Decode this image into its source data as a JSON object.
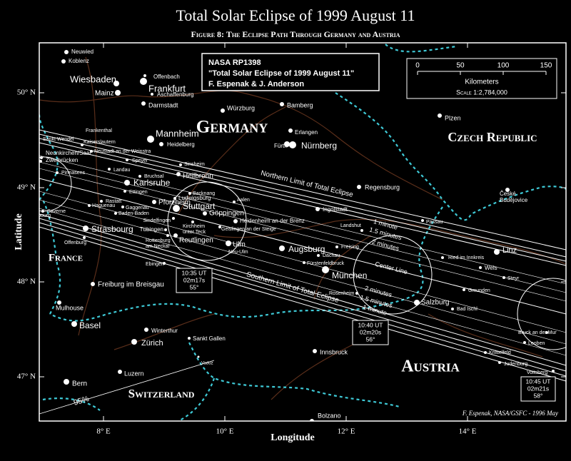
{
  "header": {
    "title": "Total Solar Eclipse of 1999 August 11",
    "subtitle": "Figure 8: The Eclipse Path Through Germany and Austria"
  },
  "credit_box": {
    "lines": [
      "NASA RP1398",
      "\"Total Solar Eclipse of 1999 August 11\"",
      "F. Espenak & J. Anderson"
    ]
  },
  "scale": {
    "title": "Kilometers",
    "ticks": [
      0,
      50,
      100,
      150
    ],
    "scale": "Scale 1:2,784,000"
  },
  "axes": {
    "y_label": "Latitude",
    "x_label": "Longitude",
    "y_ticks": [
      "50° N",
      "49° N",
      "48° N",
      "47° N"
    ],
    "x_ticks": [
      "8° E",
      "10° E",
      "12° E",
      "14° E"
    ]
  },
  "countries": [
    "Germany",
    "Czech Republic",
    "France",
    "Austria",
    "Switzerland"
  ],
  "path_labels": {
    "northern": "Northern Limit of Total Eclipse",
    "southern": "Southern Limit of Total Eclipse",
    "center": "Center Line",
    "percent": "95%"
  },
  "durations": [
    "1 minute",
    "1.5 minutes",
    "2 minutes",
    "2 minutes",
    "1.5 minutes",
    "1 minute"
  ],
  "time_boxes": [
    {
      "lines": [
        "10:35 UT",
        "02m17s",
        "55°"
      ]
    },
    {
      "lines": [
        "10:40 UT",
        "02m20s",
        "56°"
      ]
    },
    {
      "lines": [
        "10:45 UT",
        "02m21s",
        "58°"
      ]
    }
  ],
  "cities": [
    {
      "label": "Neuwied"
    },
    {
      "label": "Koblenz"
    },
    {
      "label": "Wiesbaden"
    },
    {
      "label": "Mainz"
    },
    {
      "label": "Offenbach"
    },
    {
      "label": "Frankfurt"
    },
    {
      "label": "Aschaffenburg"
    },
    {
      "label": "Darmstadt"
    },
    {
      "label": "Würzburg"
    },
    {
      "label": "Bamberg"
    },
    {
      "label": "Erlangen"
    },
    {
      "label": "Fürth"
    },
    {
      "label": "Nürnberg"
    },
    {
      "label": "Plzen"
    },
    {
      "label": "Mannheim"
    },
    {
      "label": "Frankenthal"
    },
    {
      "label": "Heidelberg"
    },
    {
      "label": "Sankt Wendel"
    },
    {
      "label": "Kaiserslautern"
    },
    {
      "label": "Neunkirchen/Saar"
    },
    {
      "label": "Neustadt an der Weinstra"
    },
    {
      "label": "Zweibrücken"
    },
    {
      "label": "Speyer"
    },
    {
      "label": "Sinsheim"
    },
    {
      "label": "Landau"
    },
    {
      "label": "Pirmasens"
    },
    {
      "label": "Bruchsal"
    },
    {
      "label": "Heilbronn"
    },
    {
      "label": "Karlsruhe"
    },
    {
      "label": "Ettingen"
    },
    {
      "label": "Backnang"
    },
    {
      "label": "Rastatt"
    },
    {
      "label": "Ludwigsburg"
    },
    {
      "label": "Aalen"
    },
    {
      "label": "Haguenau"
    },
    {
      "label": "Pforzheim"
    },
    {
      "label": "Gaggenau"
    },
    {
      "label": "Stuttgart"
    },
    {
      "label": "Göppingen"
    },
    {
      "label": "Baden-Baden"
    },
    {
      "label": "Sindelfingen"
    },
    {
      "label": "Saverne"
    },
    {
      "label": "Sarrebourg"
    },
    {
      "label": "Heidenheim an der Brenz"
    },
    {
      "label": "Strasbourg"
    },
    {
      "label": "Tübingen"
    },
    {
      "label": [
        "Kirchheim",
        "unter Teck"
      ]
    },
    {
      "label": "Geislingen an der Steige"
    },
    {
      "label": "Offenburg"
    },
    {
      "label": "Ingolstadt"
    },
    {
      "label": "Regensburg"
    },
    {
      "label": "Landshut"
    },
    {
      "label": "Passau"
    },
    {
      "label": [
        "Rottenburg",
        "am Neckar"
      ]
    },
    {
      "label": "Reutlingen"
    },
    {
      "label": "Ulm"
    },
    {
      "label": "Neu-Ulm"
    },
    {
      "label": "Augsburg"
    },
    {
      "label": "Freising"
    },
    {
      "label": "Dachau"
    },
    {
      "label": "Fürstenfeldbruck"
    },
    {
      "label": "München"
    },
    {
      "label": "Linz"
    },
    {
      "label": "Ried im Innkreis"
    },
    {
      "label": "Wels"
    },
    {
      "label": "Steyr"
    },
    {
      "label": "Ebingen"
    },
    {
      "label": "Gmunden"
    },
    {
      "label": "Rosenheim"
    },
    {
      "label": "Salzburg"
    },
    {
      "label": "Bad Ischl"
    },
    {
      "label": "Freiburg im Breisgau"
    },
    {
      "label": "Mulhouse"
    },
    {
      "label": "Basel"
    },
    {
      "label": "Winterthur"
    },
    {
      "label": "Zürich"
    },
    {
      "label": "Sankt Gallen"
    },
    {
      "label": "Vaduz"
    },
    {
      "label": "Innsbruck"
    },
    {
      "label": "Bruck an der Mur"
    },
    {
      "label": "Leoben"
    },
    {
      "label": "Knittelfeld"
    },
    {
      "label": "Judenburg"
    },
    {
      "label": "Voitsberg"
    },
    {
      "label": "Luzern"
    },
    {
      "label": "Bern"
    },
    {
      "label": "Bolzano"
    },
    {
      "label": [
        "České",
        "Budějovice"
      ]
    }
  ],
  "signature": "F. Espenak, NASA/GSFC - 1996 May"
}
